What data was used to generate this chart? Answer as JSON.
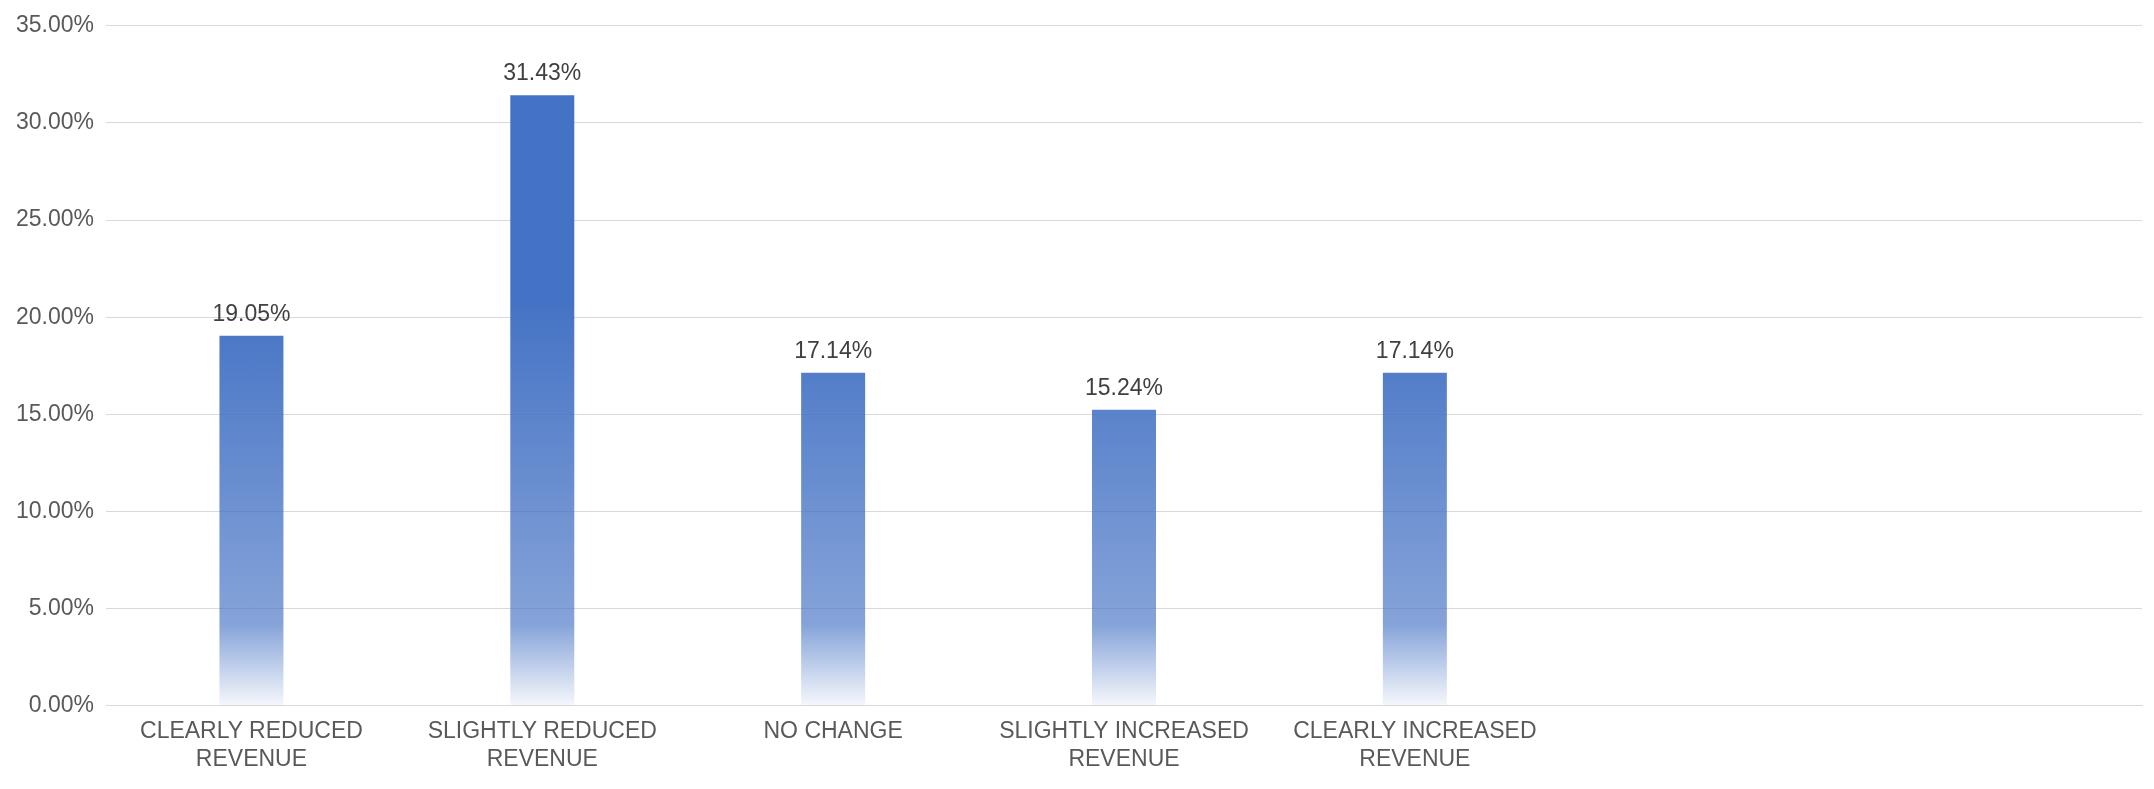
{
  "chart_data": {
    "type": "bar",
    "categories": [
      "CLEARLY REDUCED REVENUE",
      "SLIGHTLY REDUCED REVENUE",
      "NO CHANGE",
      "SLIGHTLY INCREASED REVENUE",
      "CLEARLY INCREASED REVENUE",
      null,
      null
    ],
    "values": [
      19.05,
      31.43,
      17.14,
      15.24,
      17.14,
      null,
      null
    ],
    "value_labels": [
      "19.05%",
      "31.43%",
      "17.14%",
      "15.24%",
      "17.14%",
      null,
      null
    ],
    "color": "#4472c4",
    "ylim": [
      0,
      35
    ],
    "yticks": [
      {
        "value": 0,
        "label": "0.00%"
      },
      {
        "value": 5,
        "label": "5.00%"
      },
      {
        "value": 10,
        "label": "10.00%"
      },
      {
        "value": 15,
        "label": "15.00%"
      },
      {
        "value": 20,
        "label": "20.00%"
      },
      {
        "value": 25,
        "label": "25.00%"
      },
      {
        "value": 30,
        "label": "30.00%"
      },
      {
        "value": 35,
        "label": "35.00%"
      }
    ],
    "grid": "y"
  }
}
